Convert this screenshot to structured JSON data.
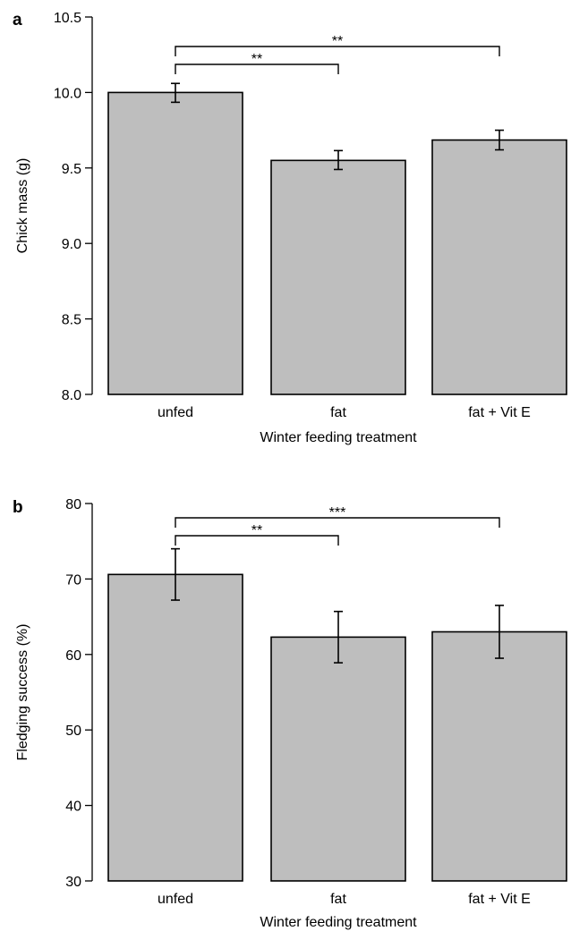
{
  "chart_data": [
    {
      "panel": "a",
      "type": "bar",
      "categories": [
        "unfed",
        "fat",
        "fat + Vit E"
      ],
      "values": [
        10.0,
        9.55,
        9.685
      ],
      "error_low": [
        9.935,
        9.49,
        9.62
      ],
      "error_high": [
        10.06,
        9.615,
        9.75
      ],
      "xlabel": "Winter feeding treatment",
      "ylabel": "Chick mass (g)",
      "ylim": [
        8.0,
        10.5
      ],
      "yticks": [
        8.0,
        8.5,
        9.0,
        9.5,
        10.0,
        10.5
      ],
      "ytick_labels": [
        "8.0",
        "8.5",
        "9.0",
        "9.5",
        "10.0",
        "10.5"
      ],
      "significance": [
        {
          "from": 0,
          "to": 1,
          "label": "**"
        },
        {
          "from": 0,
          "to": 2,
          "label": "**"
        }
      ],
      "grid": false,
      "legend": "none",
      "bar_color": "#bebebe"
    },
    {
      "panel": "b",
      "type": "bar",
      "categories": [
        "unfed",
        "fat",
        "fat + Vit E"
      ],
      "values": [
        70.6,
        62.3,
        63.0
      ],
      "error_low": [
        67.2,
        58.9,
        59.5
      ],
      "error_high": [
        74.0,
        65.7,
        66.5
      ],
      "xlabel": "Winter feeding treatment",
      "ylabel": "Fledging success (%)",
      "ylim": [
        30,
        80
      ],
      "yticks": [
        30,
        40,
        50,
        60,
        70,
        80
      ],
      "ytick_labels": [
        "30",
        "40",
        "50",
        "60",
        "70",
        "80"
      ],
      "significance": [
        {
          "from": 0,
          "to": 1,
          "label": "**"
        },
        {
          "from": 0,
          "to": 2,
          "label": "***"
        }
      ],
      "grid": false,
      "legend": "none",
      "bar_color": "#bebebe"
    }
  ]
}
